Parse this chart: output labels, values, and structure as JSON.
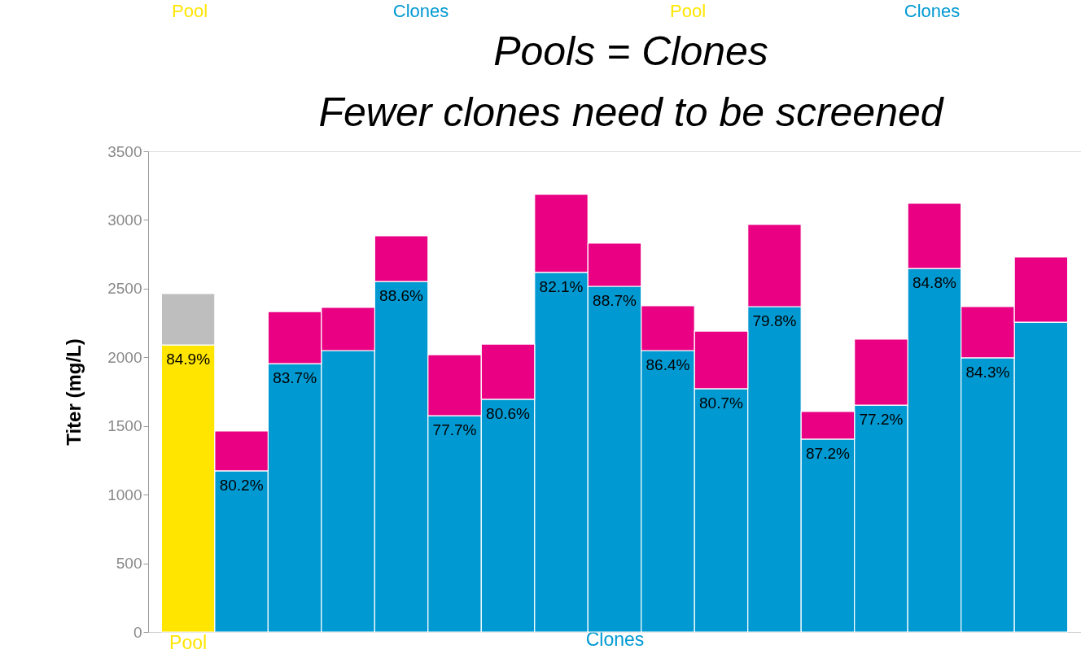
{
  "chart_data": {
    "type": "bar",
    "stacked": true,
    "title": "Pools = Clones",
    "subtitle": "Fewer clones need to be screened",
    "ylabel": "Titer (mg/L)",
    "xlabel": "Clones",
    "categories": [
      "Pool",
      null,
      null,
      null,
      null,
      null,
      null,
      null,
      null,
      null,
      null,
      null,
      null,
      null,
      null,
      null,
      null
    ],
    "series": [
      {
        "colors": [
          "#ffe500",
          "#0099d2",
          "#0099d2",
          "#0099d2",
          "#0099d2",
          "#0099d2",
          "#0099d2",
          "#0099d2",
          "#0099d2",
          "#0099d2",
          "#0099d2",
          "#0099d2",
          "#0099d2",
          "#0099d2",
          "#0099d2",
          "#0099d2",
          "#0099d2"
        ],
        "values": [
          2090,
          1173,
          1954,
          2049,
          2552,
          1575,
          1694,
          2618,
          2517,
          2049,
          1771,
          2369,
          1404,
          1652,
          2647,
          1996,
          2256
        ]
      },
      {
        "colors": [
          "#bebebe",
          "#e90083",
          "#e90083",
          "#e90083",
          "#e90083",
          "#e90083",
          "#e90083",
          "#e90083",
          "#e90083",
          "#e90083",
          "#e90083",
          "#e90083",
          "#e90083",
          "#e90083",
          "#e90083",
          "#e90083",
          "#e90083"
        ],
        "values": [
          374,
          290,
          379,
          314,
          332,
          444,
          402,
          568,
          314,
          326,
          420,
          598,
          201,
          480,
          474,
          373,
          474
        ]
      }
    ],
    "ylim": [
      0,
      3500
    ],
    "yticks": [
      0,
      500,
      1000,
      1500,
      2000,
      2500,
      3000,
      3500
    ],
    "grid": false,
    "annotations": [
      "Pool",
      "Clones",
      "Pool",
      "Clones",
      {
        "text": "84.9%",
        "y": 2090
      },
      {
        "text": "80.2%",
        "y": 1173
      },
      {
        "text": "83.7%",
        "y": 1954
      },
      {
        "text": "88.6%",
        "y": 2552
      },
      {
        "text": "77.7%",
        "y": 1575
      },
      {
        "text": "80.6%",
        "y": 1694
      },
      {
        "text": "82.1%",
        "y": 2618
      },
      {
        "text": "88.7%",
        "y": 2517
      },
      {
        "text": "86.4%",
        "y": 2049
      },
      {
        "text": "80.7%",
        "y": 1771
      },
      {
        "text": "79.8%",
        "y": 2369
      },
      {
        "text": "87.2%",
        "y": 1404
      },
      {
        "text": "77.2%",
        "y": 1652
      },
      {
        "text": "84.8%",
        "y": 2647
      },
      {
        "text": "84.3%",
        "y": 1996
      }
    ]
  }
}
